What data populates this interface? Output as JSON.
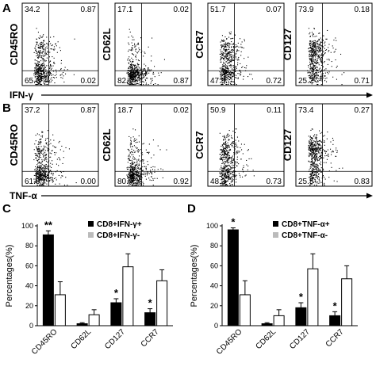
{
  "panels": {
    "A": "A",
    "B": "B",
    "C": "C",
    "D": "D"
  },
  "flow_rows": [
    {
      "x_marker": "IFN-γ",
      "plots": [
        {
          "marker": "CD45RO",
          "quadrants": {
            "ul": "34.2",
            "ur": "0.87",
            "ll": "65.0",
            "lr": "0.02"
          }
        },
        {
          "marker": "CD62L",
          "quadrants": {
            "ul": "17.1",
            "ur": "0.02",
            "ll": "82.0",
            "lr": "0.87"
          }
        },
        {
          "marker": "CCR7",
          "quadrants": {
            "ul": "51.7",
            "ur": "0.07",
            "ll": "47.5",
            "lr": "0.72"
          }
        },
        {
          "marker": "CD127",
          "quadrants": {
            "ul": "73.9",
            "ur": "0.18",
            "ll": "25.2",
            "lr": "0.71"
          }
        }
      ]
    },
    {
      "x_marker": "TNF-α",
      "plots": [
        {
          "marker": "CD45RO",
          "quadrants": {
            "ul": "37.2",
            "ur": "0.87",
            "ll": "61.9",
            "lr": "0.00"
          }
        },
        {
          "marker": "CD62L",
          "quadrants": {
            "ul": "18.7",
            "ur": "0.02",
            "ll": "80.4",
            "lr": "0.92"
          }
        },
        {
          "marker": "CCR7",
          "quadrants": {
            "ul": "50.9",
            "ur": "0.11",
            "ll": "48.2",
            "lr": "0.73"
          }
        },
        {
          "marker": "CD127",
          "quadrants": {
            "ul": "73.4",
            "ur": "0.27",
            "ll": "25.5",
            "lr": "0.83"
          }
        }
      ]
    }
  ],
  "colors": {
    "positive_bar": "#000000",
    "negative_bar": "#ffffff",
    "legend_negative": "#bbbbbb",
    "dots": "#000000"
  },
  "chart_data": [
    {
      "type": "bar",
      "panel": "C",
      "categories": [
        "CD45RO",
        "CD62L",
        "CD127",
        "CCR7"
      ],
      "ylabel": "Percentages(%)",
      "ylim": [
        0,
        100
      ],
      "yticks": [
        "0",
        "20",
        "40",
        "60",
        "80",
        "100"
      ],
      "legend_position": "top-right",
      "series": [
        {
          "name": "CD8+IFN-γ+",
          "values": [
            91,
            2,
            23,
            13
          ],
          "errors": [
            4,
            1,
            4,
            4
          ]
        },
        {
          "name": "CD8+IFN-γ-",
          "values": [
            31,
            11,
            59,
            45
          ],
          "errors": [
            13,
            5,
            13,
            11
          ]
        }
      ],
      "significance": [
        "**",
        "",
        "*",
        "*"
      ]
    },
    {
      "type": "bar",
      "panel": "D",
      "categories": [
        "CD45RO",
        "CD62L",
        "CD127",
        "CCR7"
      ],
      "ylabel": "Percentages(%)",
      "ylim": [
        0,
        100
      ],
      "yticks": [
        "0",
        "20",
        "40",
        "60",
        "80",
        "100"
      ],
      "legend_position": "top-right",
      "series": [
        {
          "name": "CD8+TNF-α+",
          "values": [
            96,
            2,
            18,
            10
          ],
          "errors": [
            2,
            1,
            5,
            4
          ]
        },
        {
          "name": "CD8+TNF-α-",
          "values": [
            31,
            10,
            57,
            47
          ],
          "errors": [
            14,
            6,
            15,
            13
          ]
        }
      ],
      "significance": [
        "*",
        "",
        "*",
        "*"
      ]
    }
  ]
}
